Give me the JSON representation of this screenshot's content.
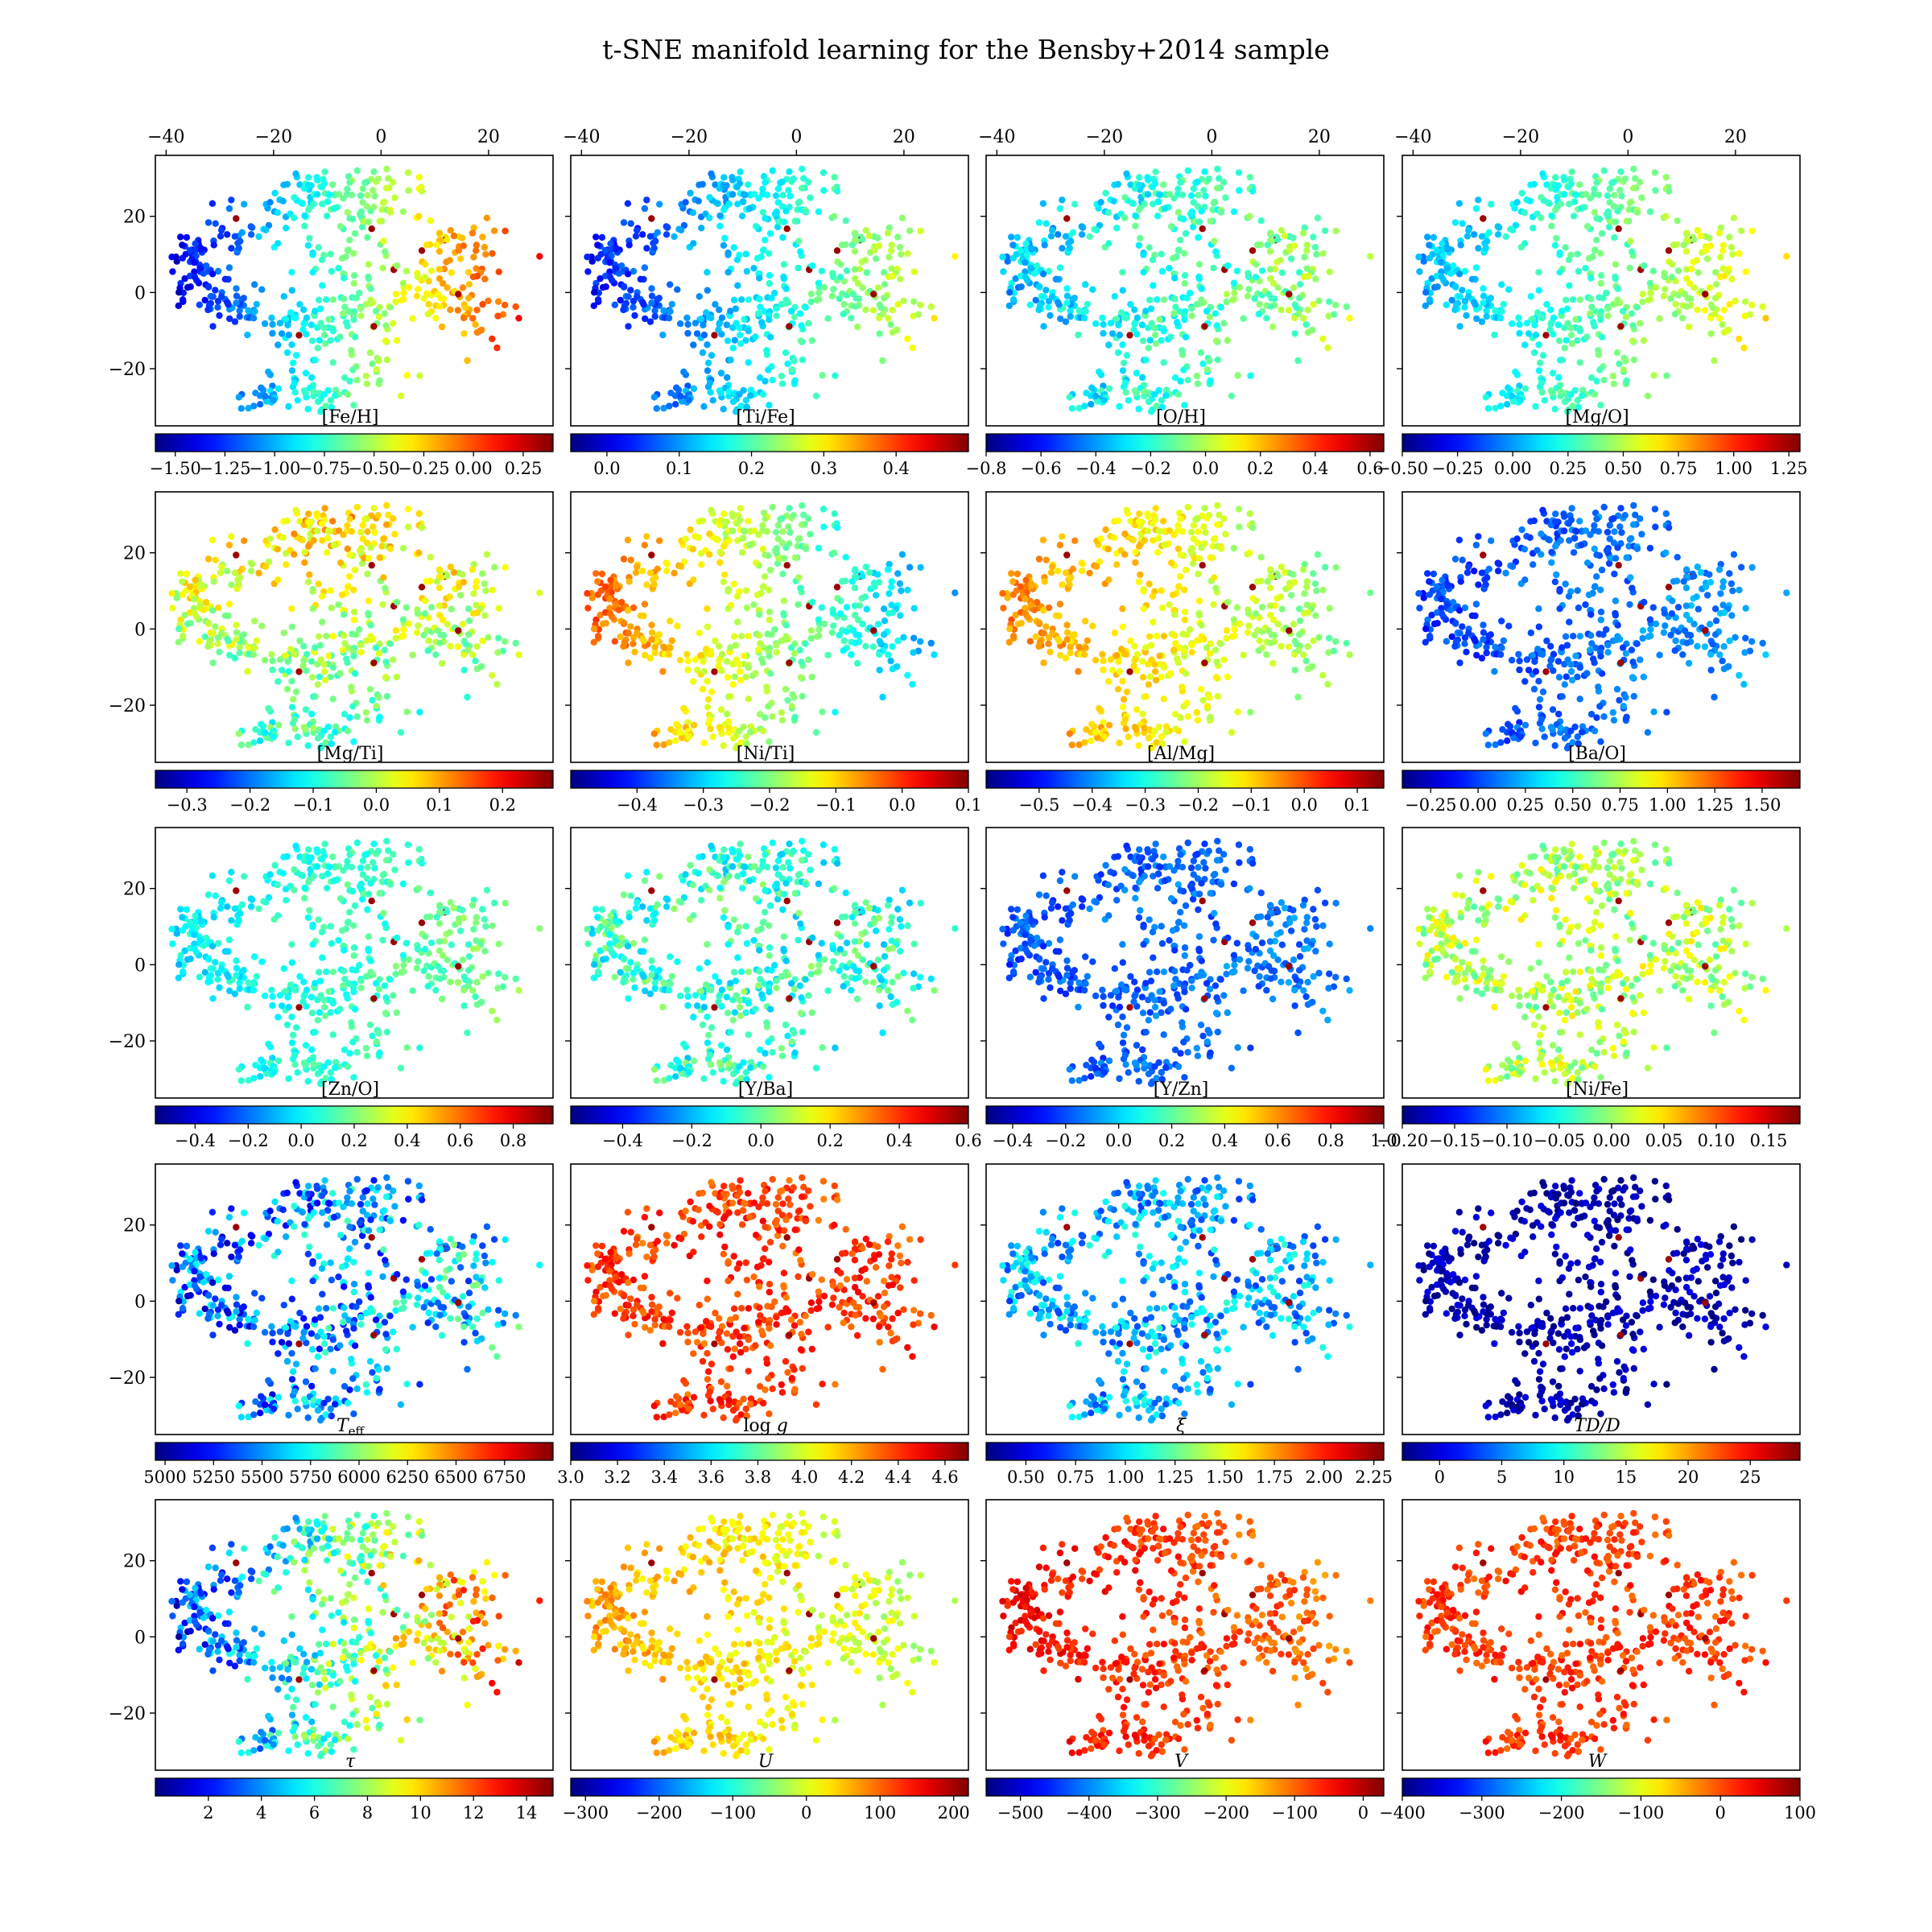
{
  "figure": {
    "title": "t-SNE manifold learning for the Bensby+2014 sample"
  },
  "chart_data": {
    "type": "scatter",
    "colormap": "jet",
    "embedding_axes": {
      "xlim": [
        -42,
        32
      ],
      "ylim": [
        -35,
        36
      ],
      "xticks": [
        -40,
        -20,
        0,
        20
      ],
      "yticks": [
        -20,
        0,
        20
      ]
    },
    "points_description": "t-SNE embedding of the Bensby+2014 stellar sample; the same 2-D point cloud is repeated in every panel, colored by the panel's quantity.",
    "panels": [
      {
        "label": "[Fe/H]",
        "vmin": -1.6,
        "vmax": 0.4,
        "ticks": [
          -1.5,
          -1.25,
          -1.0,
          -0.75,
          -0.5,
          -0.25,
          0.0,
          0.25
        ],
        "tick_labels": [
          "−1.50",
          "−1.25",
          "−1.00",
          "−0.75",
          "−0.50",
          "−0.25",
          "0.00",
          "0.25"
        ]
      },
      {
        "label": "[Ti/Fe]",
        "vmin": -0.05,
        "vmax": 0.5,
        "ticks": [
          0.0,
          0.1,
          0.2,
          0.3,
          0.4
        ],
        "tick_labels": [
          "0.0",
          "0.1",
          "0.2",
          "0.3",
          "0.4"
        ]
      },
      {
        "label": "[O/H]",
        "vmin": -0.8,
        "vmax": 0.65,
        "ticks": [
          -0.8,
          -0.6,
          -0.4,
          -0.2,
          0.0,
          0.2,
          0.4,
          0.6
        ],
        "tick_labels": [
          "−0.8",
          "−0.6",
          "−0.4",
          "−0.2",
          "0.0",
          "0.2",
          "0.4",
          "0.6"
        ]
      },
      {
        "label": "[Mg/O]",
        "vmin": -0.5,
        "vmax": 1.3,
        "ticks": [
          -0.5,
          -0.25,
          0.0,
          0.25,
          0.5,
          0.75,
          1.0,
          1.25
        ],
        "tick_labels": [
          "−0.50",
          "−0.25",
          "0.00",
          "0.25",
          "0.50",
          "0.75",
          "1.00",
          "1.25"
        ]
      },
      {
        "label": "[Mg/Ti]",
        "vmin": -0.35,
        "vmax": 0.28,
        "ticks": [
          -0.3,
          -0.2,
          -0.1,
          0.0,
          0.1,
          0.2
        ],
        "tick_labels": [
          "−0.3",
          "−0.2",
          "−0.1",
          "0.0",
          "0.1",
          "0.2"
        ]
      },
      {
        "label": "[Ni/Ti]",
        "vmin": -0.5,
        "vmax": 0.1,
        "ticks": [
          -0.4,
          -0.3,
          -0.2,
          -0.1,
          0.0,
          0.1
        ],
        "tick_labels": [
          "−0.4",
          "−0.3",
          "−0.2",
          "−0.1",
          "0.0",
          "0.1"
        ]
      },
      {
        "label": "[Al/Mg]",
        "vmin": -0.6,
        "vmax": 0.15,
        "ticks": [
          -0.5,
          -0.4,
          -0.3,
          -0.2,
          -0.1,
          0.0,
          0.1
        ],
        "tick_labels": [
          "−0.5",
          "−0.4",
          "−0.3",
          "−0.2",
          "−0.1",
          "0.0",
          "0.1"
        ]
      },
      {
        "label": "[Ba/O]",
        "vmin": -0.4,
        "vmax": 1.7,
        "ticks": [
          -0.25,
          0.0,
          0.25,
          0.5,
          0.75,
          1.0,
          1.25,
          1.5
        ],
        "tick_labels": [
          "−0.25",
          "0.00",
          "0.25",
          "0.50",
          "0.75",
          "1.00",
          "1.25",
          "1.50"
        ]
      },
      {
        "label": "[Zn/O]",
        "vmin": -0.55,
        "vmax": 0.95,
        "ticks": [
          -0.4,
          -0.2,
          0.0,
          0.2,
          0.4,
          0.6,
          0.8
        ],
        "tick_labels": [
          "−0.4",
          "−0.2",
          "0.0",
          "0.2",
          "0.4",
          "0.6",
          "0.8"
        ]
      },
      {
        "label": "[Y/Ba]",
        "vmin": -0.55,
        "vmax": 0.6,
        "ticks": [
          -0.4,
          -0.2,
          0.0,
          0.2,
          0.4,
          0.6
        ],
        "tick_labels": [
          "−0.4",
          "−0.2",
          "0.0",
          "0.2",
          "0.4",
          "0.6"
        ]
      },
      {
        "label": "[Y/Zn]",
        "vmin": -0.5,
        "vmax": 1.0,
        "ticks": [
          -0.4,
          -0.2,
          0.0,
          0.2,
          0.4,
          0.6,
          0.8,
          1.0
        ],
        "tick_labels": [
          "−0.4",
          "−0.2",
          "0.0",
          "0.2",
          "0.4",
          "0.6",
          "0.8",
          "1.0"
        ]
      },
      {
        "label": "[Ni/Fe]",
        "vmin": -0.2,
        "vmax": 0.18,
        "ticks": [
          -0.2,
          -0.15,
          -0.1,
          -0.05,
          0.0,
          0.05,
          0.1,
          0.15
        ],
        "tick_labels": [
          "−0.20",
          "−0.15",
          "−0.10",
          "−0.05",
          "0.00",
          "0.05",
          "0.10",
          "0.15"
        ]
      },
      {
        "label": "T_eff",
        "label_sub": "eff",
        "label_main": "T",
        "vmin": 4950,
        "vmax": 7000,
        "ticks": [
          5000,
          5250,
          5500,
          5750,
          6000,
          6250,
          6500,
          6750
        ],
        "tick_labels": [
          "5000",
          "5250",
          "5500",
          "5750",
          "6000",
          "6250",
          "6500",
          "6750"
        ]
      },
      {
        "label": "log g",
        "vmin": 3.0,
        "vmax": 4.7,
        "ticks": [
          3.0,
          3.2,
          3.4,
          3.6,
          3.8,
          4.0,
          4.2,
          4.4,
          4.6
        ],
        "tick_labels": [
          "3.0",
          "3.2",
          "3.4",
          "3.6",
          "3.8",
          "4.0",
          "4.2",
          "4.4",
          "4.6"
        ]
      },
      {
        "label": "ξ",
        "vmin": 0.3,
        "vmax": 2.3,
        "ticks": [
          0.5,
          0.75,
          1.0,
          1.25,
          1.5,
          1.75,
          2.0,
          2.25
        ],
        "tick_labels": [
          "0.50",
          "0.75",
          "1.00",
          "1.25",
          "1.50",
          "1.75",
          "2.00",
          "2.25"
        ]
      },
      {
        "label": "TD/D",
        "vmin": -3,
        "vmax": 29,
        "ticks": [
          0,
          5,
          10,
          15,
          20,
          25
        ],
        "tick_labels": [
          "0",
          "5",
          "10",
          "15",
          "20",
          "25"
        ]
      },
      {
        "label": "τ",
        "vmin": 0,
        "vmax": 15,
        "ticks": [
          2,
          4,
          6,
          8,
          10,
          12,
          14
        ],
        "tick_labels": [
          "2",
          "4",
          "6",
          "8",
          "10",
          "12",
          "14"
        ]
      },
      {
        "label": "U",
        "vmin": -320,
        "vmax": 220,
        "ticks": [
          -300,
          -200,
          -100,
          0,
          100,
          200
        ],
        "tick_labels": [
          "−300",
          "−200",
          "−100",
          "0",
          "100",
          "200"
        ]
      },
      {
        "label": "V",
        "vmin": -550,
        "vmax": 30,
        "ticks": [
          -500,
          -400,
          -300,
          -200,
          -100,
          0
        ],
        "tick_labels": [
          "−500",
          "−400",
          "−300",
          "−200",
          "−100",
          "0"
        ]
      },
      {
        "label": "W",
        "vmin": -400,
        "vmax": 100,
        "ticks": [
          -400,
          -300,
          -200,
          -100,
          0,
          100
        ],
        "tick_labels": [
          "−400",
          "−300",
          "−200",
          "−100",
          "0",
          "100"
        ]
      }
    ]
  }
}
